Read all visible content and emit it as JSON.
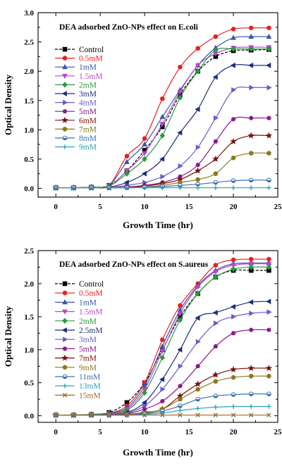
{
  "chart_data": [
    {
      "type": "line",
      "title": "DEA adsorbed ZnO-NPs effect on E.coli",
      "xlabel": "Growth Time (hr)",
      "ylabel": "Optical Density",
      "xlim": [
        -2,
        25
      ],
      "ylim": [
        -0.15,
        3.0
      ],
      "xticks": [
        0,
        5,
        10,
        15,
        20,
        25
      ],
      "yticks": [
        0.0,
        0.5,
        1.0,
        1.5,
        2.0,
        2.5,
        3.0
      ],
      "grid": false,
      "legend_position": "top-left",
      "x": [
        0,
        2,
        4,
        6,
        8,
        10,
        12,
        14,
        16,
        18,
        20,
        22,
        24
      ],
      "series": [
        {
          "name": "Control",
          "color": "#000000",
          "marker": "square",
          "dashed": true,
          "values": [
            0.01,
            0.01,
            0.02,
            0.05,
            0.3,
            0.65,
            1.05,
            1.6,
            2.0,
            2.25,
            2.35,
            2.36,
            2.37
          ]
        },
        {
          "name": "0.5mM",
          "color": "#e8211f",
          "marker": "circle",
          "values": [
            0.01,
            0.01,
            0.02,
            0.05,
            0.55,
            0.85,
            1.53,
            2.07,
            2.39,
            2.59,
            2.72,
            2.74,
            2.74
          ]
        },
        {
          "name": "1mM",
          "color": "#3b55a8",
          "marker": "triangle-up",
          "values": [
            0.01,
            0.01,
            0.02,
            0.05,
            0.45,
            0.75,
            1.22,
            1.68,
            2.1,
            2.4,
            2.57,
            2.59,
            2.59
          ]
        },
        {
          "name": "1.5mM",
          "color": "#bb44cc",
          "marker": "triangle-down",
          "values": [
            0.01,
            0.01,
            0.02,
            0.04,
            0.3,
            0.6,
            1.1,
            1.65,
            2.1,
            2.3,
            2.4,
            2.41,
            2.41
          ]
        },
        {
          "name": "2mM",
          "color": "#2a9a40",
          "marker": "diamond",
          "values": [
            0.01,
            0.01,
            0.02,
            0.04,
            0.25,
            0.5,
            0.9,
            1.55,
            2.0,
            2.36,
            2.38,
            2.38,
            2.38
          ]
        },
        {
          "name": "3mM",
          "color": "#1c2e7a",
          "marker": "triangle-left",
          "values": [
            0.01,
            0.01,
            0.01,
            0.02,
            0.1,
            0.25,
            0.5,
            0.95,
            1.35,
            1.9,
            2.1,
            2.1,
            2.1
          ]
        },
        {
          "name": "4mM",
          "color": "#6a5acd",
          "marker": "triangle-right",
          "values": [
            0.01,
            0.01,
            0.01,
            0.01,
            0.05,
            0.1,
            0.2,
            0.38,
            0.7,
            1.2,
            1.68,
            1.72,
            1.72
          ]
        },
        {
          "name": "5mM",
          "color": "#8b1a8b",
          "marker": "hexagon",
          "values": [
            0.01,
            0.01,
            0.01,
            0.01,
            0.02,
            0.05,
            0.1,
            0.2,
            0.4,
            0.8,
            1.18,
            1.2,
            1.2
          ]
        },
        {
          "name": "6mM",
          "color": "#7a1010",
          "marker": "star",
          "values": [
            0.01,
            0.01,
            0.01,
            0.01,
            0.02,
            0.04,
            0.08,
            0.15,
            0.3,
            0.5,
            0.8,
            0.9,
            0.9
          ]
        },
        {
          "name": "7mM",
          "color": "#8a7a1a",
          "marker": "circle",
          "values": [
            0.01,
            0.01,
            0.01,
            0.01,
            0.01,
            0.02,
            0.05,
            0.1,
            0.15,
            0.25,
            0.52,
            0.6,
            0.6
          ]
        },
        {
          "name": "8mM",
          "color": "#3a70b0",
          "marker": "circle-half",
          "values": [
            0.01,
            0.01,
            0.01,
            0.01,
            0.01,
            0.02,
            0.03,
            0.05,
            0.07,
            0.1,
            0.13,
            0.14,
            0.14
          ]
        },
        {
          "name": "9mM",
          "color": "#2aa0b8",
          "marker": "plus",
          "values": [
            0.01,
            0.01,
            0.01,
            0.01,
            0.01,
            0.01,
            0.01,
            0.01,
            0.01,
            0.01,
            0.01,
            0.01,
            0.01
          ]
        }
      ]
    },
    {
      "type": "line",
      "title": "DEA adsorbed ZnO-NPs effect on S.aureus",
      "xlabel": "Growth Time (hr)",
      "ylabel": "Optical Density",
      "xlim": [
        -2,
        25
      ],
      "ylim": [
        -0.1,
        2.5
      ],
      "xticks": [
        0,
        5,
        10,
        15,
        20,
        25
      ],
      "yticks": [
        0.0,
        0.5,
        1.0,
        1.5,
        2.0,
        2.5
      ],
      "grid": false,
      "legend_position": "top-left",
      "x": [
        0,
        2,
        4,
        6,
        8,
        10,
        12,
        14,
        16,
        18,
        20,
        22,
        24
      ],
      "series": [
        {
          "name": "Control",
          "color": "#000000",
          "marker": "square",
          "dashed": true,
          "values": [
            0.01,
            0.01,
            0.02,
            0.05,
            0.2,
            0.5,
            1.0,
            1.5,
            1.85,
            2.1,
            2.2,
            2.2,
            2.2
          ]
        },
        {
          "name": "0.5mM",
          "color": "#e8211f",
          "marker": "circle",
          "values": [
            0.01,
            0.01,
            0.02,
            0.04,
            0.15,
            0.5,
            1.15,
            1.67,
            2.0,
            2.28,
            2.36,
            2.37,
            2.37
          ]
        },
        {
          "name": "1mM",
          "color": "#3b55a8",
          "marker": "triangle-up",
          "values": [
            0.01,
            0.01,
            0.02,
            0.04,
            0.12,
            0.45,
            1.05,
            1.6,
            1.97,
            2.2,
            2.3,
            2.31,
            2.31
          ]
        },
        {
          "name": "1.5mM",
          "color": "#bb44cc",
          "marker": "triangle-down",
          "values": [
            0.01,
            0.01,
            0.02,
            0.03,
            0.1,
            0.4,
            0.98,
            1.55,
            1.95,
            2.18,
            2.28,
            2.3,
            2.3
          ]
        },
        {
          "name": "2mM",
          "color": "#2a9a40",
          "marker": "diamond",
          "values": [
            0.01,
            0.01,
            0.02,
            0.03,
            0.08,
            0.35,
            0.88,
            1.45,
            1.85,
            2.1,
            2.22,
            2.25,
            2.25
          ]
        },
        {
          "name": "2.5mM",
          "color": "#1c2e7a",
          "marker": "triangle-left",
          "values": [
            0.01,
            0.01,
            0.01,
            0.02,
            0.05,
            0.2,
            0.55,
            1.0,
            1.48,
            1.56,
            1.65,
            1.72,
            1.73
          ]
        },
        {
          "name": "3mM",
          "color": "#6a5acd",
          "marker": "triangle-right",
          "values": [
            0.01,
            0.01,
            0.01,
            0.02,
            0.04,
            0.15,
            0.4,
            0.75,
            1.12,
            1.4,
            1.5,
            1.55,
            1.57
          ]
        },
        {
          "name": "5mM",
          "color": "#8b1a8b",
          "marker": "hexagon",
          "values": [
            0.01,
            0.01,
            0.01,
            0.01,
            0.03,
            0.1,
            0.22,
            0.45,
            0.75,
            1.05,
            1.25,
            1.3,
            1.3
          ]
        },
        {
          "name": "7mM",
          "color": "#7a1010",
          "marker": "star",
          "values": [
            0.01,
            0.01,
            0.01,
            0.01,
            0.02,
            0.05,
            0.1,
            0.3,
            0.48,
            0.62,
            0.7,
            0.72,
            0.72
          ]
        },
        {
          "name": "9mM",
          "color": "#8a7a1a",
          "marker": "circle",
          "values": [
            0.01,
            0.01,
            0.01,
            0.01,
            0.02,
            0.04,
            0.1,
            0.25,
            0.4,
            0.52,
            0.58,
            0.6,
            0.6
          ]
        },
        {
          "name": "11mM",
          "color": "#3a70b0",
          "marker": "circle-half",
          "values": [
            0.01,
            0.01,
            0.01,
            0.01,
            0.01,
            0.03,
            0.07,
            0.15,
            0.25,
            0.3,
            0.32,
            0.33,
            0.33
          ]
        },
        {
          "name": "13mM",
          "color": "#2aa0b8",
          "marker": "plus",
          "values": [
            0.01,
            0.01,
            0.01,
            0.01,
            0.01,
            0.02,
            0.04,
            0.08,
            0.11,
            0.13,
            0.14,
            0.14,
            0.14
          ]
        },
        {
          "name": "15mM",
          "color": "#9a6a2a",
          "marker": "x",
          "values": [
            0.01,
            0.01,
            0.01,
            0.01,
            0.01,
            0.01,
            0.01,
            0.01,
            0.01,
            0.01,
            0.01,
            0.01,
            0.01
          ]
        }
      ]
    }
  ]
}
